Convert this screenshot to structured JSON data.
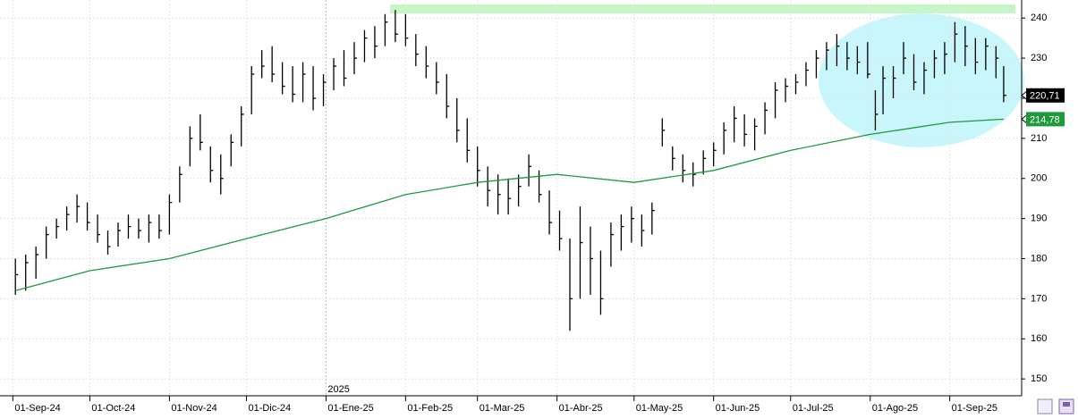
{
  "chart_data": {
    "type": "ohlc",
    "color": "#000000",
    "grid": true,
    "x": [
      "2024-09-02",
      "2024-09-06",
      "2024-09-10",
      "2024-09-14",
      "2024-09-18",
      "2024-09-22",
      "2024-09-26",
      "2024-09-30",
      "2024-10-04",
      "2024-10-08",
      "2024-10-12",
      "2024-10-16",
      "2024-10-20",
      "2024-10-24",
      "2024-10-28",
      "2024-11-01",
      "2024-11-05",
      "2024-11-09",
      "2024-11-13",
      "2024-11-17",
      "2024-11-21",
      "2024-11-25",
      "2024-11-29",
      "2024-12-03",
      "2024-12-07",
      "2024-12-11",
      "2024-12-15",
      "2024-12-19",
      "2024-12-23",
      "2024-12-27",
      "2024-12-31",
      "2025-01-04",
      "2025-01-08",
      "2025-01-12",
      "2025-01-16",
      "2025-01-20",
      "2025-01-24",
      "2025-01-28",
      "2025-02-01",
      "2025-02-05",
      "2025-02-09",
      "2025-02-13",
      "2025-02-17",
      "2025-02-21",
      "2025-02-25",
      "2025-03-01",
      "2025-03-05",
      "2025-03-09",
      "2025-03-13",
      "2025-03-17",
      "2025-03-21",
      "2025-03-25",
      "2025-03-29",
      "2025-04-02",
      "2025-04-06",
      "2025-04-10",
      "2025-04-14",
      "2025-04-18",
      "2025-04-22",
      "2025-04-26",
      "2025-04-30",
      "2025-05-04",
      "2025-05-08",
      "2025-05-12",
      "2025-05-16",
      "2025-05-20",
      "2025-05-24",
      "2025-05-28",
      "2025-06-01",
      "2025-06-05",
      "2025-06-09",
      "2025-06-13",
      "2025-06-17",
      "2025-06-21",
      "2025-06-25",
      "2025-06-29",
      "2025-07-03",
      "2025-07-07",
      "2025-07-11",
      "2025-07-15",
      "2025-07-19",
      "2025-07-23",
      "2025-07-27",
      "2025-07-31",
      "2025-08-03",
      "2025-08-06",
      "2025-08-10",
      "2025-08-14",
      "2025-08-18",
      "2025-08-22",
      "2025-08-26",
      "2025-08-30",
      "2025-09-03",
      "2025-09-07",
      "2025-09-11",
      "2025-09-15",
      "2025-09-19",
      "2025-09-22"
    ],
    "high": [
      180,
      181,
      183,
      188,
      190,
      193,
      196,
      194,
      191,
      187,
      189,
      191,
      190,
      191,
      191,
      196,
      203,
      213,
      216,
      208,
      206,
      211,
      218,
      228,
      232,
      233,
      229,
      228,
      229,
      228,
      226,
      230,
      232,
      234,
      237,
      238,
      241,
      242,
      241,
      236,
      233,
      229,
      226,
      220,
      215,
      208,
      203,
      201,
      200,
      201,
      206,
      202,
      197,
      192,
      185,
      193,
      188,
      182,
      189,
      191,
      193,
      191,
      194,
      215,
      208,
      206,
      204,
      207,
      209,
      214,
      218,
      216,
      215,
      219,
      224,
      225,
      226,
      229,
      232,
      234,
      236,
      234,
      233,
      234,
      222,
      228,
      228,
      234,
      231,
      229,
      232,
      234,
      239,
      238,
      235,
      235,
      233,
      228
    ],
    "low": [
      171,
      172,
      175,
      180,
      185,
      187,
      189,
      187,
      184,
      181,
      183,
      185,
      185,
      184,
      185,
      186,
      194,
      203,
      207,
      199,
      196,
      203,
      208,
      216,
      225,
      224,
      221,
      219,
      219,
      217,
      218,
      222,
      223,
      226,
      229,
      230,
      233,
      234,
      233,
      228,
      225,
      221,
      215,
      209,
      204,
      198,
      193,
      191,
      191,
      193,
      198,
      194,
      186,
      182,
      162,
      170,
      171,
      166,
      178,
      182,
      184,
      183,
      186,
      208,
      202,
      199,
      198,
      201,
      203,
      206,
      209,
      208,
      207,
      211,
      215,
      219,
      221,
      223,
      225,
      227,
      228,
      227,
      226,
      225,
      212,
      216,
      220,
      226,
      222,
      221,
      225,
      226,
      229,
      228,
      226,
      227,
      225,
      219
    ],
    "close": [
      176,
      179,
      181,
      186,
      188,
      191,
      193,
      189,
      186,
      183,
      187,
      188,
      187,
      189,
      187,
      194,
      201,
      210,
      209,
      202,
      200,
      209,
      216,
      226,
      228,
      226,
      223,
      221,
      226,
      220,
      224,
      228,
      225,
      230,
      235,
      233,
      239,
      236,
      235,
      231,
      228,
      224,
      218,
      212,
      207,
      202,
      197,
      196,
      195,
      198,
      203,
      196,
      189,
      185,
      170,
      184,
      180,
      170,
      186,
      188,
      190,
      187,
      192,
      212,
      205,
      202,
      201,
      205,
      207,
      212,
      215,
      211,
      213,
      217,
      222,
      223,
      224,
      227,
      230,
      232,
      233,
      230,
      229,
      226,
      216,
      225,
      225,
      230,
      224,
      227,
      230,
      231,
      236,
      233,
      229,
      233,
      230,
      220.71
    ],
    "last_label": {
      "value": 220.71,
      "label": "220,71",
      "color": "#000000"
    },
    "moving_average": {
      "color": "#1e9a3c",
      "x": [
        "2024-09-02",
        "2024-10-01",
        "2024-11-01",
        "2024-12-01",
        "2025-01-01",
        "2025-02-01",
        "2025-03-01",
        "2025-04-01",
        "2025-05-01",
        "2025-06-01",
        "2025-07-01",
        "2025-08-01",
        "2025-09-01",
        "2025-09-22"
      ],
      "values": [
        172,
        177,
        180,
        185,
        190,
        196,
        199,
        201,
        199,
        202,
        207,
        211,
        214,
        214.78
      ],
      "last_label": {
        "value": 214.78,
        "label": "214,78"
      }
    },
    "year_marker": {
      "value": "2025-01-01",
      "label": "2025"
    },
    "xlim": [
      "2024-08-27",
      "2025-09-29"
    ],
    "xticks": [
      {
        "value": "2024-09-01",
        "label": "01-Sep-24"
      },
      {
        "value": "2024-10-01",
        "label": "01-Oct-24"
      },
      {
        "value": "2024-11-01",
        "label": "01-Nov-24"
      },
      {
        "value": "2024-12-01",
        "label": "01-Dic-24"
      },
      {
        "value": "2025-01-01",
        "label": "01-Ene-25"
      },
      {
        "value": "2025-02-01",
        "label": "01-Feb-25"
      },
      {
        "value": "2025-03-01",
        "label": "01-Mar-25"
      },
      {
        "value": "2025-04-01",
        "label": "01-Abr-25"
      },
      {
        "value": "2025-05-01",
        "label": "01-May-25"
      },
      {
        "value": "2025-06-01",
        "label": "01-Jun-25"
      },
      {
        "value": "2025-07-01",
        "label": "01-Jul-25"
      },
      {
        "value": "2025-08-01",
        "label": "01-Ago-25"
      },
      {
        "value": "2025-09-01",
        "label": "01-Sep-25"
      }
    ],
    "ylim": [
      145.8,
      244.5
    ],
    "yticks": [
      150,
      160,
      170,
      180,
      190,
      200,
      210,
      220,
      230,
      240
    ]
  }
}
